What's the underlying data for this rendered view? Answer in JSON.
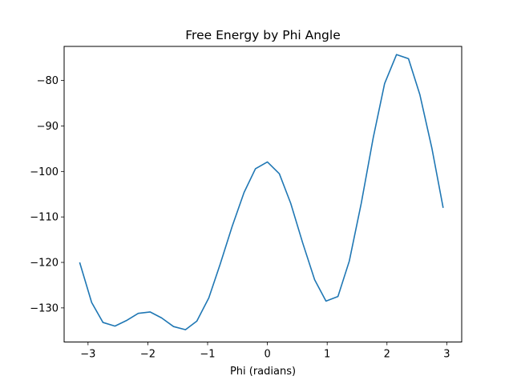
{
  "chart_data": {
    "type": "line",
    "title": "Free Energy by Phi Angle",
    "xlabel": "Phi (radians)",
    "ylabel": "",
    "xlim": [
      -3.4,
      3.25
    ],
    "ylim": [
      -137.5,
      -72.5
    ],
    "xticks": [
      -3,
      -2,
      -1,
      0,
      1,
      2,
      3
    ],
    "yticks": [
      -130,
      -120,
      -110,
      -100,
      -90,
      -80
    ],
    "grid": false,
    "color": "#1f77b4",
    "series": [
      {
        "x": [
          -3.14,
          -2.94,
          -2.75,
          -2.55,
          -2.36,
          -2.16,
          -1.96,
          -1.77,
          -1.57,
          -1.37,
          -1.18,
          -0.98,
          -0.79,
          -0.59,
          -0.39,
          -0.2,
          0.0,
          0.2,
          0.39,
          0.59,
          0.79,
          0.98,
          1.18,
          1.37,
          1.57,
          1.77,
          1.96,
          2.16,
          2.36,
          2.55,
          2.75,
          2.94
        ],
        "y": [
          -120.0,
          -128.8,
          -133.2,
          -134.0,
          -132.8,
          -131.2,
          -130.9,
          -132.2,
          -134.1,
          -134.8,
          -132.9,
          -127.8,
          -120.4,
          -112.1,
          -104.6,
          -99.4,
          -97.9,
          -100.5,
          -107.0,
          -115.7,
          -123.8,
          -128.5,
          -127.5,
          -119.7,
          -107.0,
          -92.6,
          -80.7,
          -74.3,
          -75.2,
          -83.1,
          -94.8,
          -108.0
        ]
      }
    ]
  }
}
